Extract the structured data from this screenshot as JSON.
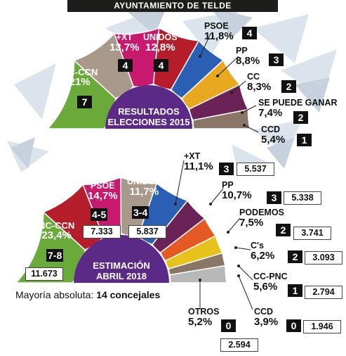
{
  "header": "AYUNTAMIENTO DE TELDE",
  "chart_data": [
    {
      "type": "pie",
      "title": "RESULTADOS ELECCIONES 2015",
      "title_lines": [
        "RESULTADOS",
        "ELECCIONES 2015"
      ],
      "slices": [
        {
          "label": "NC-CCN",
          "pct": "21%",
          "value": 21,
          "seats": "7",
          "color": "#6aaa3a"
        },
        {
          "label": "+XT",
          "pct": "13,7%",
          "value": 13.7,
          "seats": "4",
          "color": "#a8998a"
        },
        {
          "label": "UNIDOS",
          "pct": "12,8%",
          "value": 12.8,
          "seats": "4",
          "color": "#c8196f"
        },
        {
          "label": "PSOE",
          "pct": "11,8%",
          "value": 11.8,
          "seats": "4",
          "color": "#b51d2b"
        },
        {
          "label": "PP",
          "pct": "8,8%",
          "value": 8.8,
          "seats": "3",
          "color": "#2b5fb3"
        },
        {
          "label": "CC",
          "pct": "8,3%",
          "value": 8.3,
          "seats": "2",
          "color": "#e8a921"
        },
        {
          "label": "SE PUEDE GANAR",
          "pct": "7,4%",
          "value": 7.4,
          "seats": "2",
          "color": "#6b2357"
        },
        {
          "label": "CCD",
          "pct": "5,4%",
          "value": 5.4,
          "seats": "1",
          "color": "#8a7566"
        }
      ]
    },
    {
      "type": "pie",
      "title": "ESTIMACIÓN ABRIL 2018",
      "title_lines": [
        "ESTIMACIÓN",
        "ABRIL 2018"
      ],
      "slices": [
        {
          "label": "NC-CCN",
          "pct": "23,4%",
          "value": 23.4,
          "seats": "7-8",
          "votes": "11.673",
          "color": "#6aaa3a"
        },
        {
          "label": "PSOE",
          "pct": "14,7%",
          "value": 14.7,
          "seats": "4-5",
          "votes": "7.333",
          "color": "#b51d2b"
        },
        {
          "label": "UNIDOS",
          "pct": "11,7%",
          "value": 11.7,
          "seats": "3-4",
          "votes": "5.837",
          "color": "#c8196f"
        },
        {
          "label": "+XT",
          "pct": "11,1%",
          "value": 11.1,
          "seats": "3",
          "votes": "5.537",
          "color": "#a8998a"
        },
        {
          "label": "PP",
          "pct": "10,7%",
          "value": 10.7,
          "seats": "3",
          "votes": "5.338",
          "color": "#2b5fb3"
        },
        {
          "label": "PODEMOS",
          "pct": "7,5%",
          "value": 7.5,
          "seats": "2",
          "votes": "3.741",
          "color": "#6b2357"
        },
        {
          "label": "C's",
          "pct": "6,2%",
          "value": 6.2,
          "seats": "2",
          "votes": "3.093",
          "color": "#e35a25"
        },
        {
          "label": "CC-PNC",
          "pct": "5,6%",
          "value": 5.6,
          "seats": "1",
          "votes": "2.794",
          "color": "#e8c21c"
        },
        {
          "label": "CCD",
          "pct": "3,9%",
          "value": 3.9,
          "seats": "0",
          "votes": "1.946",
          "color": "#8a7566"
        },
        {
          "label": "OTROS",
          "pct": "5,2%",
          "value": 5.2,
          "seats": "0",
          "votes": "2.594",
          "color": "#b8b8b8"
        }
      ]
    }
  ],
  "note": {
    "prefix": "Mayoría absoluta:",
    "value": "14 concejales"
  }
}
